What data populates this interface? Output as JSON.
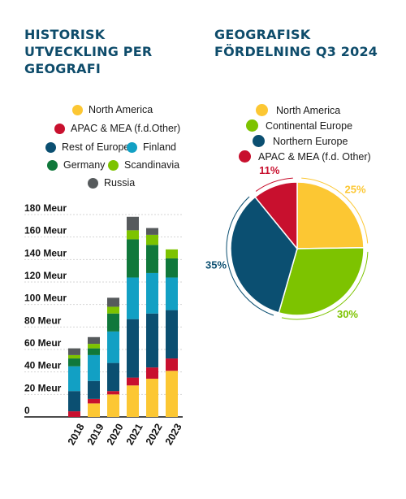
{
  "colors": {
    "north_america": "#fcc733",
    "apac_mea": "#c8102e",
    "rest_of_europe": "#0b4f71",
    "finland": "#12a0c4",
    "germany": "#10783b",
    "scandinavia": "#7dc300",
    "russia": "#565a5c",
    "continental_europe": "#7dc300",
    "northern_europe": "#0b4f71"
  },
  "left": {
    "title": "HISTORISK UTVECKLING PER GEOGRAFI",
    "legend": {
      "north_america": "North America",
      "apac_mea": "APAC & MEA (f.d.Other)",
      "rest_of_europe": "Rest of Europe",
      "finland": "Finland",
      "germany": "Germany",
      "scandinavia": "Scandinavia",
      "russia": "Russia"
    }
  },
  "right": {
    "title": "GEOGRAFISK FÖRDELNING Q3 2024",
    "legend": {
      "north_america": "North America",
      "continental_europe": "Continental Europe",
      "northern_europe": "Northern Europe",
      "apac_mea": "APAC & MEA (f.d. Other)"
    }
  },
  "chart_data": [
    {
      "type": "bar",
      "stacked": true,
      "title": "HISTORISK UTVECKLING PER GEOGRAFI",
      "categories": [
        "2018",
        "2019",
        "2020",
        "2021",
        "2022",
        "2023"
      ],
      "yticks": [
        "0",
        "20 Meur",
        "40 Meur",
        "60 Meur",
        "80 Meur",
        "100 Meur",
        "120 Meur",
        "140 Meur",
        "160 Meur",
        "180 Meur"
      ],
      "ylim": [
        0,
        180
      ],
      "grid": true,
      "legend_position": "top",
      "series": [
        {
          "name": "North America",
          "key": "north_america",
          "values": [
            0,
            12,
            20,
            28,
            34,
            41
          ]
        },
        {
          "name": "APAC & MEA (f.d.Other)",
          "key": "apac_mea",
          "values": [
            5,
            4,
            3,
            7,
            10,
            11
          ]
        },
        {
          "name": "Rest of Europe",
          "key": "rest_of_europe",
          "values": [
            18,
            16,
            25,
            52,
            48,
            43
          ]
        },
        {
          "name": "Finland",
          "key": "finland",
          "values": [
            22,
            23,
            28,
            37,
            36,
            29
          ]
        },
        {
          "name": "Germany",
          "key": "germany",
          "values": [
            7,
            6,
            16,
            34,
            25,
            17
          ]
        },
        {
          "name": "Scandinavia",
          "key": "scandinavia",
          "values": [
            3,
            4,
            6,
            8,
            9,
            8
          ]
        },
        {
          "name": "Russia",
          "key": "russia",
          "values": [
            6,
            6,
            8,
            12,
            6,
            0
          ]
        }
      ]
    },
    {
      "type": "pie",
      "title": "GEOGRAFISK FÖRDELNING Q3 2024",
      "legend_position": "top",
      "slices": [
        {
          "name": "North America",
          "key": "north_america",
          "value": 25,
          "label": "25%"
        },
        {
          "name": "Continental Europe",
          "key": "continental_europe",
          "value": 30,
          "label": "30%"
        },
        {
          "name": "Northern Europe",
          "key": "northern_europe",
          "value": 35,
          "label": "35%"
        },
        {
          "name": "APAC & MEA (f.d. Other)",
          "key": "apac_mea",
          "value": 11,
          "label": "11%"
        }
      ]
    }
  ]
}
